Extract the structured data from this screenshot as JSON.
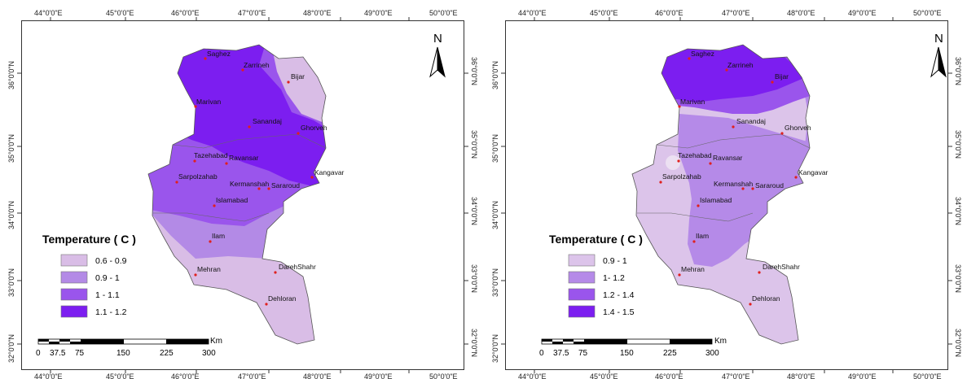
{
  "maps": [
    {
      "id": "left",
      "lon_labels": [
        "44°0'0\"E",
        "45°0'0\"E",
        "46°0'0\"E",
        "47°0'0\"E",
        "48°0'0\"E",
        "49°0'0\"E",
        "50°0'0\"E"
      ],
      "lat_labels": [
        "36°0'0\"N",
        "35°0'0\"N",
        "34°0'0\"N",
        "33°0'0\"N",
        "32°0'0\"N"
      ],
      "north": "N",
      "legend": {
        "title": "Temperature ( C )",
        "classes": [
          {
            "label": "0.6 - 0.9",
            "color": "#d9bde6"
          },
          {
            "label": "0.9 - 1",
            "color": "#b38ae6"
          },
          {
            "label": "1 - 1.1",
            "color": "#9a55ec"
          },
          {
            "label": "1.1 - 1.2",
            "color": "#7c1ef0"
          }
        ]
      },
      "scale": {
        "unit": "Km",
        "ticks": [
          "0",
          "37.5",
          "75",
          "150",
          "225",
          "300"
        ]
      },
      "cities": [
        "Saghez",
        "Zarrineh",
        "Bijar",
        "Marivan",
        "Sanandaj",
        "Ghorveh",
        "Tazehabad",
        "Ravansar",
        "Kangavar",
        "Sarpolzahab",
        "Kermanshah",
        "Sararoud",
        "Islamabad",
        "Ilam",
        "Mehran",
        "DarehShahr",
        "Dehloran"
      ]
    },
    {
      "id": "right",
      "lon_labels": [
        "44°0'0\"E",
        "45°0'0\"E",
        "46°0'0\"E",
        "47°0'0\"E",
        "48°0'0\"E",
        "49°0'0\"E",
        "50°0'0\"E"
      ],
      "lat_labels": [
        "36°0'0\"N",
        "35°0'0\"N",
        "34°0'0\"N",
        "33°0'0\"N",
        "32°0'0\"N"
      ],
      "north": "N",
      "legend": {
        "title": "Temperature ( C )",
        "classes": [
          {
            "label": "0.9 - 1",
            "color": "#dcc4ea"
          },
          {
            "label": "1- 1.2",
            "color": "#b58ae8"
          },
          {
            "label": "1.2 - 1.4",
            "color": "#9a55ec"
          },
          {
            "label": "1.4 - 1.5",
            "color": "#7c1ef0"
          }
        ]
      },
      "scale": {
        "unit": "Km",
        "ticks": [
          "0",
          "37.5",
          "75",
          "150",
          "225",
          "300"
        ]
      },
      "cities": [
        "Saghez",
        "Zarrineh",
        "Bijar",
        "Marivan",
        "Sanandaj",
        "Ghorveh",
        "Tazehabad",
        "Ravansar",
        "Kangavar",
        "Sarpolzahab",
        "Kermanshah",
        "Sararoud",
        "Islamabad",
        "Ilam",
        "Mehran",
        "DarehShahr",
        "Dehloran"
      ]
    }
  ]
}
